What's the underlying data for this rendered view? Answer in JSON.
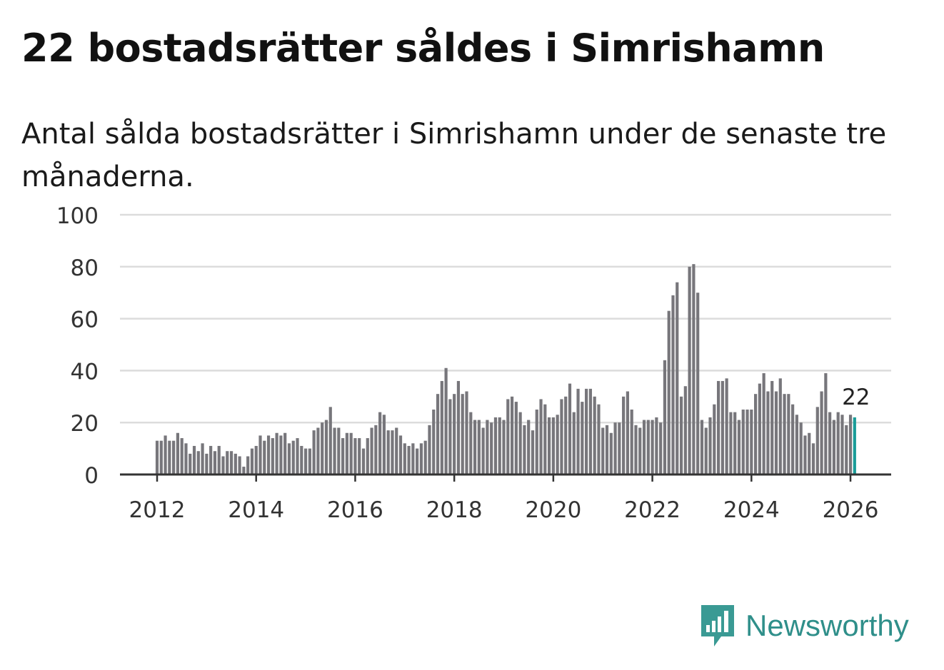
{
  "title": "22 bostadsrätter såldes i Simrishamn",
  "subtitle": "Antal sålda bostadsrätter i Simrishamn under de senaste tre månaderna.",
  "brand": {
    "name": "Newsworthy",
    "icon": "newsworthy-logo-icon",
    "color": "#3a9a94"
  },
  "chart_data": {
    "type": "bar",
    "x_start": "2012-01",
    "interval": "month",
    "ylim": [
      0,
      100
    ],
    "yticks": [
      0,
      20,
      40,
      60,
      80,
      100
    ],
    "xticks": [
      "2012",
      "2014",
      "2016",
      "2018",
      "2020",
      "2022",
      "2024",
      "2026"
    ],
    "grid": true,
    "bar_color": "#77767b",
    "highlight_color": "#1a9c98",
    "highlight_label": "22",
    "values": [
      13,
      13,
      15,
      13,
      13,
      16,
      14,
      12,
      8,
      11,
      9,
      12,
      8,
      11,
      9,
      11,
      7,
      9,
      9,
      8,
      7,
      3,
      7,
      10,
      11,
      15,
      13,
      15,
      14,
      16,
      15,
      16,
      12,
      13,
      14,
      11,
      10,
      10,
      17,
      18,
      20,
      21,
      26,
      18,
      18,
      14,
      16,
      16,
      14,
      14,
      10,
      14,
      18,
      19,
      24,
      23,
      17,
      17,
      18,
      15,
      12,
      11,
      12,
      10,
      12,
      13,
      19,
      25,
      31,
      36,
      41,
      29,
      31,
      36,
      31,
      32,
      24,
      21,
      21,
      18,
      21,
      20,
      22,
      22,
      21,
      29,
      30,
      28,
      24,
      19,
      21,
      17,
      25,
      29,
      27,
      22,
      22,
      23,
      29,
      30,
      35,
      24,
      33,
      28,
      33,
      33,
      30,
      27,
      18,
      19,
      16,
      20,
      20,
      30,
      32,
      25,
      19,
      18,
      21,
      21,
      21,
      22,
      20,
      44,
      63,
      69,
      74,
      30,
      34,
      80,
      81,
      70,
      21,
      18,
      22,
      27,
      36,
      36,
      37,
      24,
      24,
      21,
      25,
      25,
      25,
      31,
      35,
      39,
      32,
      36,
      32,
      37,
      31,
      31,
      27,
      23,
      20,
      15,
      16,
      12,
      26,
      32,
      39,
      24,
      21,
      24,
      23,
      19,
      23,
      22
    ]
  }
}
